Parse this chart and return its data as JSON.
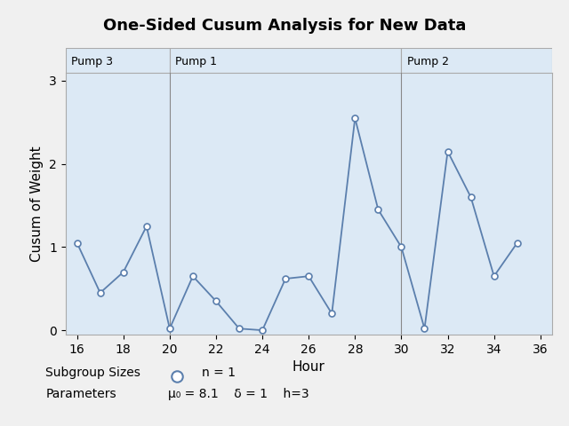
{
  "title": "One-Sided Cusum Analysis for New Data",
  "xlabel": "Hour",
  "ylabel": "Cusum of Weight",
  "x_values": [
    16,
    17,
    18,
    19,
    20,
    21,
    22,
    23,
    24,
    25,
    26,
    27,
    28,
    29,
    30,
    31,
    32,
    33,
    34,
    35
  ],
  "y_values": [
    1.05,
    0.45,
    0.7,
    1.25,
    0.02,
    0.65,
    0.35,
    0.02,
    0.0,
    0.62,
    0.65,
    0.2,
    2.55,
    1.45,
    1.0,
    0.02,
    2.15,
    1.6,
    0.65,
    1.05
  ],
  "xlim": [
    15.5,
    36.5
  ],
  "ylim": [
    -0.05,
    3.1
  ],
  "xticks": [
    16,
    18,
    20,
    22,
    24,
    26,
    28,
    30,
    32,
    34,
    36
  ],
  "yticks": [
    0,
    1,
    2,
    3
  ],
  "pump_regions": [
    {
      "label": "Pump 3",
      "x_start": 15.5,
      "x_end": 20
    },
    {
      "label": "Pump 1",
      "x_start": 20,
      "x_end": 30
    },
    {
      "label": "Pump 2",
      "x_start": 30,
      "x_end": 36.5
    }
  ],
  "line_color": "#5b7fad",
  "marker_facecolor": "white",
  "marker_edgecolor": "#5b7fad",
  "plot_bg": "#dce9f5",
  "header_bg": "#dce9f5",
  "fig_bg": "#f0f0f0",
  "vline_color": "#888888",
  "border_color": "#aaaaaa",
  "title_fontsize": 13,
  "axis_label_fontsize": 11,
  "tick_fontsize": 10,
  "pump_label_fontsize": 9,
  "annotation_fontsize": 10,
  "subgroup_label": "Subgroup Sizes",
  "n_label": "n = 1",
  "params_label": "Parameters",
  "mu0_label": "μ₀ = 8.1",
  "delta_label": "δ = 1",
  "h_label": "h=3"
}
